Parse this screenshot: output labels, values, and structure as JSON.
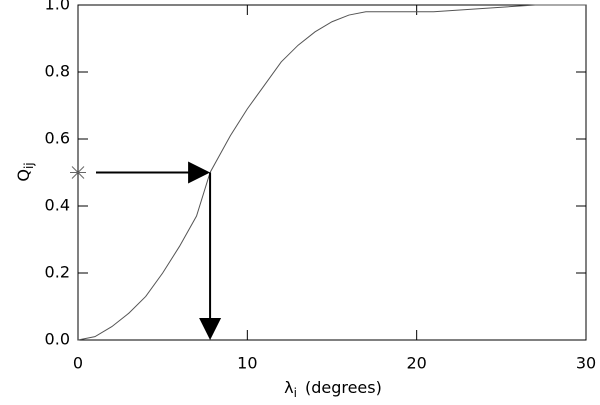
{
  "chart_data": {
    "type": "line",
    "x_label": {
      "symbol": "λ",
      "subscript": "i",
      "unit": "(degrees)"
    },
    "y_label": {
      "symbol": "Q",
      "subscript": "ij"
    },
    "x": [
      0,
      1,
      2,
      3,
      4,
      5,
      6,
      7,
      7.8,
      9,
      10,
      11,
      12,
      13,
      14,
      15,
      16,
      17,
      18,
      21,
      24,
      27,
      30
    ],
    "series": [
      {
        "color": "#555555",
        "values": [
          0,
          0.01,
          0.04,
          0.08,
          0.13,
          0.2,
          0.28,
          0.37,
          0.5,
          0.61,
          0.69,
          0.76,
          0.83,
          0.88,
          0.92,
          0.95,
          0.97,
          0.98,
          0.98,
          0.98,
          0.99,
          1.0,
          1.0
        ]
      }
    ],
    "xlim": [
      0,
      30
    ],
    "ylim": [
      0,
      1
    ],
    "xticks": [
      0,
      10,
      20,
      30
    ],
    "yticks": [
      {
        "value": 0,
        "label": "0.0"
      },
      0.2,
      0.4,
      0.6,
      0.8,
      {
        "value": 1,
        "label": "1.0"
      }
    ],
    "marker": {
      "x": 0,
      "y": 0.5
    },
    "arrow_point": {
      "x": 7.8,
      "y": 0.5
    }
  }
}
